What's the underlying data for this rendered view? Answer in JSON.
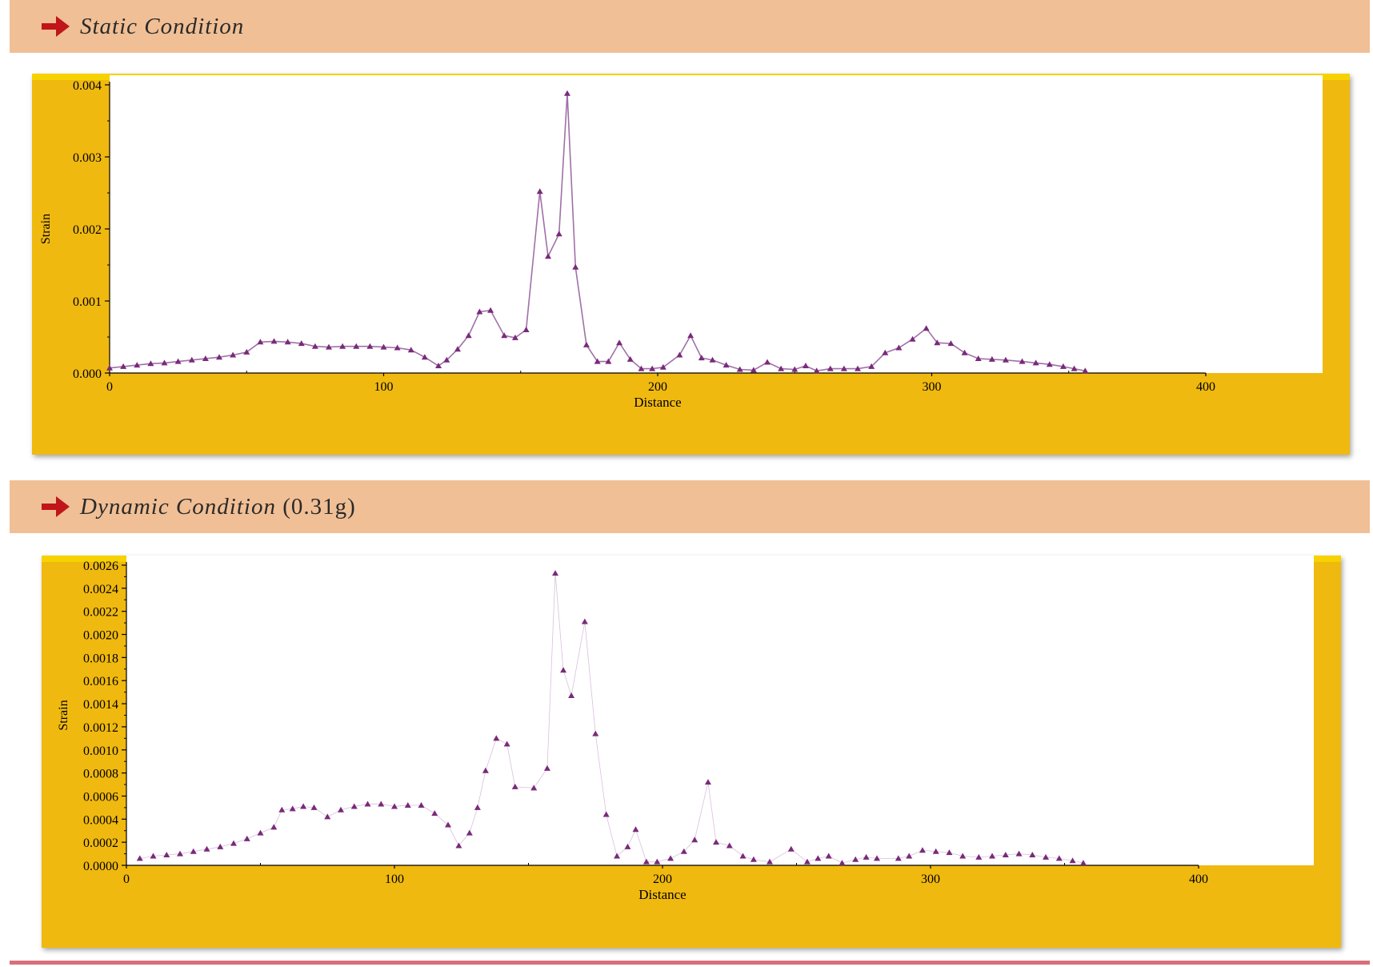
{
  "sections": [
    {
      "title_italic": "Static Condition",
      "title_plain": ""
    },
    {
      "title_italic": "Dynamic Condition",
      "title_plain": " (0.31g)"
    }
  ],
  "colors": {
    "header_bg": "#f1bf95",
    "frame": "#f0b90f",
    "series": "#7a2a7a",
    "arrow": "#c0151b",
    "rule": "#d8707a"
  },
  "chart_data": [
    {
      "type": "line",
      "xlabel": "Distance",
      "ylabel": "Strain",
      "xlim": [
        0,
        400
      ],
      "ylim": [
        0,
        0.004
      ],
      "xticks": [
        "0",
        "100",
        "200",
        "300",
        "400"
      ],
      "yticks": [
        "0.000",
        "0.001",
        "0.002",
        "0.003",
        "0.004"
      ],
      "grid": false,
      "series": [
        {
          "x": [
            0,
            5,
            10,
            15,
            20,
            25,
            30,
            35,
            40,
            45,
            50,
            55,
            60,
            65,
            70,
            75,
            80,
            85,
            90,
            95,
            100,
            105,
            110,
            115,
            120,
            123,
            127,
            131,
            135,
            139,
            144,
            148,
            152,
            157,
            160,
            164,
            167,
            170,
            174,
            178,
            182,
            186,
            190,
            194,
            198,
            202,
            208,
            212,
            216,
            220,
            225,
            230,
            235,
            240,
            245,
            250,
            254,
            258,
            263,
            268,
            273,
            278,
            283,
            288,
            293,
            298,
            302,
            307,
            312,
            317,
            322,
            327,
            333,
            338,
            343,
            348,
            352,
            356
          ],
          "y": [
            7e-05,
            9e-05,
            0.00011,
            0.00013,
            0.00014,
            0.00016,
            0.00018,
            0.0002,
            0.00022,
            0.00025,
            0.00029,
            0.00043,
            0.00044,
            0.00043,
            0.00041,
            0.00037,
            0.00036,
            0.00037,
            0.00037,
            0.00037,
            0.00036,
            0.00035,
            0.00032,
            0.00022,
            0.0001,
            0.00018,
            0.00033,
            0.00052,
            0.00085,
            0.00087,
            0.00052,
            0.00049,
            0.0006,
            0.00252,
            0.00162,
            0.00193,
            0.00388,
            0.00147,
            0.00039,
            0.00016,
            0.00016,
            0.00042,
            0.00019,
            6e-05,
            6e-05,
            8e-05,
            0.00025,
            0.00052,
            0.00021,
            0.00018,
            0.00011,
            5e-05,
            4e-05,
            0.00015,
            6e-05,
            5e-05,
            0.0001,
            3e-05,
            6e-05,
            6e-05,
            6e-05,
            9e-05,
            0.00028,
            0.00035,
            0.00047,
            0.00062,
            0.00042,
            0.00041,
            0.00028,
            0.0002,
            0.00019,
            0.00018,
            0.00016,
            0.00014,
            0.00012,
            9e-05,
            6e-05,
            3e-05
          ]
        }
      ]
    },
    {
      "type": "scatter",
      "xlabel": "Distance",
      "ylabel": "Strain",
      "xlim": [
        0,
        400
      ],
      "ylim": [
        0,
        0.0026
      ],
      "xticks": [
        "0",
        "100",
        "200",
        "300",
        "400"
      ],
      "yticks": [
        "0.0000",
        "0.0002",
        "0.0004",
        "0.0006",
        "0.0008",
        "0.0010",
        "0.0012",
        "0.0014",
        "0.0016",
        "0.0018",
        "0.0020",
        "0.0022",
        "0.0024",
        "0.0026"
      ],
      "grid": false,
      "series": [
        {
          "x": [
            5,
            10,
            15,
            20,
            25,
            30,
            35,
            40,
            45,
            50,
            55,
            58,
            62,
            66,
            70,
            75,
            80,
            85,
            90,
            95,
            100,
            105,
            110,
            115,
            120,
            124,
            128,
            131,
            134,
            138,
            142,
            145,
            152,
            157,
            160,
            163,
            166,
            171,
            175,
            179,
            183,
            187,
            190,
            194,
            198,
            203,
            208,
            212,
            217,
            220,
            225,
            230,
            234,
            240,
            248,
            254,
            258,
            262,
            267,
            272,
            276,
            280,
            288,
            292,
            297,
            302,
            307,
            312,
            318,
            323,
            328,
            333,
            338,
            343,
            348,
            353,
            357
          ],
          "y": [
            6e-05,
            8e-05,
            9e-05,
            0.0001,
            0.00012,
            0.00014,
            0.00016,
            0.00019,
            0.00023,
            0.00028,
            0.00033,
            0.00048,
            0.00049,
            0.00051,
            0.0005,
            0.00042,
            0.00048,
            0.00051,
            0.00053,
            0.00053,
            0.00051,
            0.00052,
            0.00052,
            0.00045,
            0.00035,
            0.00017,
            0.00028,
            0.0005,
            0.00082,
            0.0011,
            0.00105,
            0.00068,
            0.00067,
            0.00084,
            0.00253,
            0.00169,
            0.00147,
            0.00211,
            0.00114,
            0.00044,
            8e-05,
            0.00016,
            0.00031,
            3e-05,
            3e-05,
            6e-05,
            0.00012,
            0.00022,
            0.00072,
            0.0002,
            0.00017,
            8e-05,
            5e-05,
            3e-05,
            0.00014,
            3e-05,
            6e-05,
            8e-05,
            2e-05,
            5e-05,
            7e-05,
            6e-05,
            6e-05,
            8e-05,
            0.00013,
            0.00012,
            0.00011,
            8e-05,
            7e-05,
            8e-05,
            9e-05,
            0.0001,
            9e-05,
            7e-05,
            6e-05,
            4e-05,
            2e-05
          ]
        }
      ]
    }
  ]
}
